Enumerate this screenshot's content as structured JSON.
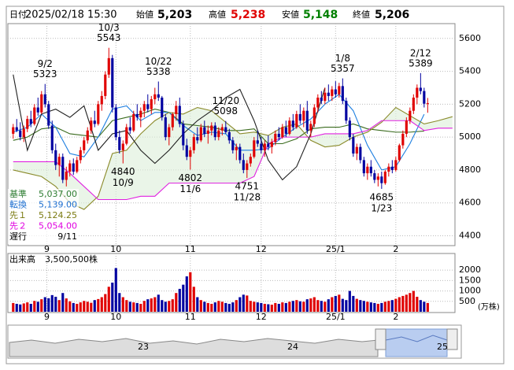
{
  "header": [
    {
      "label": "日付",
      "value": "2025/02/18 15:30"
    },
    {
      "label": "始値",
      "value": "5,203"
    },
    {
      "label": "高値",
      "value": "5,238",
      "color": "#e00000"
    },
    {
      "label": "安値",
      "value": "5,148",
      "color": "#008000"
    },
    {
      "label": "終値",
      "value": "5,206"
    }
  ],
  "chart_data": {
    "type": "candlestick",
    "up_color": "#e00000",
    "down_color": "#0000a0",
    "xlim": [
      -1.5,
      124.7
    ],
    "xticks": [
      {
        "value": 9.5,
        "label": "9"
      },
      {
        "value": 29,
        "label": "10"
      },
      {
        "value": 50,
        "label": "11"
      },
      {
        "value": 70,
        "label": "12"
      },
      {
        "value": 91,
        "label": "25/1"
      },
      {
        "value": 108,
        "label": "2"
      }
    ],
    "ylim": [
      4340,
      5690
    ],
    "yticks": [
      4400,
      4600,
      4800,
      5000,
      5200,
      5400,
      5600
    ],
    "grid": true,
    "candles": [
      [
        5020,
        5080,
        4990,
        5060
      ],
      [
        5060,
        5110,
        5030,
        5040
      ],
      [
        5040,
        5090,
        4980,
        5000
      ],
      [
        5000,
        5070,
        4970,
        5050
      ],
      [
        5050,
        5130,
        5030,
        5110
      ],
      [
        5110,
        5160,
        5060,
        5080
      ],
      [
        5080,
        5200,
        5070,
        5180
      ],
      [
        5180,
        5240,
        5130,
        5150
      ],
      [
        5150,
        5280,
        5140,
        5260
      ],
      [
        5260,
        5323,
        5180,
        5200
      ],
      [
        5200,
        5220,
        5050,
        5070
      ],
      [
        5070,
        5100,
        4900,
        4920
      ],
      [
        4920,
        4960,
        4800,
        4830
      ],
      [
        4830,
        4900,
        4760,
        4880
      ],
      [
        4880,
        4900,
        4720,
        4740
      ],
      [
        4740,
        4820,
        4700,
        4790
      ],
      [
        4790,
        4860,
        4760,
        4840
      ],
      [
        4840,
        4870,
        4770,
        4790
      ],
      [
        4790,
        4880,
        4780,
        4860
      ],
      [
        4860,
        4940,
        4840,
        4920
      ],
      [
        4920,
        5000,
        4900,
        4980
      ],
      [
        4980,
        5060,
        4960,
        5040
      ],
      [
        5040,
        5120,
        5020,
        5100
      ],
      [
        5100,
        5160,
        5060,
        5080
      ],
      [
        5080,
        5220,
        5070,
        5200
      ],
      [
        5200,
        5280,
        5160,
        5250
      ],
      [
        5250,
        5400,
        5230,
        5380
      ],
      [
        5380,
        5543,
        5360,
        5480
      ],
      [
        5480,
        5500,
        5150,
        5180
      ],
      [
        5180,
        5200,
        4980,
        5000
      ],
      [
        5000,
        5040,
        4900,
        4920
      ],
      [
        4920,
        4980,
        4840,
        4960
      ],
      [
        4960,
        5080,
        4950,
        5060
      ],
      [
        5060,
        5120,
        5020,
        5040
      ],
      [
        5040,
        5160,
        5030,
        5140
      ],
      [
        5140,
        5200,
        5100,
        5120
      ],
      [
        5120,
        5180,
        5060,
        5160
      ],
      [
        5160,
        5220,
        5120,
        5200
      ],
      [
        5200,
        5260,
        5150,
        5170
      ],
      [
        5170,
        5250,
        5140,
        5230
      ],
      [
        5230,
        5300,
        5200,
        5260
      ],
      [
        5260,
        5338,
        5220,
        5240
      ],
      [
        5240,
        5250,
        5100,
        5120
      ],
      [
        5120,
        5140,
        4980,
        5000
      ],
      [
        5000,
        5080,
        4950,
        5060
      ],
      [
        5060,
        5150,
        5040,
        5140
      ],
      [
        5140,
        5220,
        5100,
        5190
      ],
      [
        5190,
        5240,
        5060,
        5080
      ],
      [
        5080,
        5100,
        4920,
        4950
      ],
      [
        4950,
        4990,
        4860,
        4880
      ],
      [
        4880,
        4940,
        4802,
        4920
      ],
      [
        4920,
        5020,
        4900,
        5000
      ],
      [
        5000,
        5060,
        4960,
        4980
      ],
      [
        4980,
        5080,
        4970,
        5060
      ],
      [
        5060,
        5100,
        5000,
        5020
      ],
      [
        5020,
        5070,
        4960,
        5040
      ],
      [
        5040,
        5090,
        5010,
        5070
      ],
      [
        5070,
        5090,
        4980,
        5000
      ],
      [
        5000,
        5060,
        4980,
        5040
      ],
      [
        5040,
        5080,
        5010,
        5060
      ],
      [
        5060,
        5098,
        5020,
        5030
      ],
      [
        5030,
        5050,
        4960,
        4980
      ],
      [
        4980,
        5000,
        4900,
        4920
      ],
      [
        4920,
        4960,
        4860,
        4940
      ],
      [
        4940,
        4960,
        4840,
        4860
      ],
      [
        4860,
        4900,
        4780,
        4800
      ],
      [
        4800,
        4860,
        4751,
        4840
      ],
      [
        4840,
        4900,
        4820,
        4880
      ],
      [
        4880,
        5000,
        4870,
        4980
      ],
      [
        4980,
        5040,
        4940,
        4960
      ],
      [
        4960,
        5000,
        4900,
        4920
      ],
      [
        4920,
        4980,
        4880,
        4960
      ],
      [
        4960,
        5010,
        4920,
        4940
      ],
      [
        4940,
        4990,
        4900,
        4970
      ],
      [
        4970,
        5040,
        4950,
        5020
      ],
      [
        5020,
        5060,
        4980,
        5000
      ],
      [
        5000,
        5080,
        4990,
        5060
      ],
      [
        5060,
        5100,
        5000,
        5020
      ],
      [
        5020,
        5120,
        5010,
        5100
      ],
      [
        5100,
        5140,
        5040,
        5060
      ],
      [
        5060,
        5160,
        5050,
        5140
      ],
      [
        5140,
        5200,
        5080,
        5100
      ],
      [
        5100,
        5180,
        5060,
        5160
      ],
      [
        5160,
        5220,
        5020,
        5040
      ],
      [
        5040,
        5100,
        5000,
        5080
      ],
      [
        5080,
        5200,
        5060,
        5180
      ],
      [
        5180,
        5260,
        5150,
        5240
      ],
      [
        5240,
        5280,
        5200,
        5220
      ],
      [
        5220,
        5300,
        5200,
        5270
      ],
      [
        5270,
        5320,
        5220,
        5250
      ],
      [
        5250,
        5310,
        5220,
        5290
      ],
      [
        5290,
        5340,
        5240,
        5260
      ],
      [
        5260,
        5330,
        5240,
        5310
      ],
      [
        5310,
        5357,
        5200,
        5220
      ],
      [
        5220,
        5240,
        5080,
        5100
      ],
      [
        5100,
        5120,
        4980,
        5000
      ],
      [
        5000,
        5020,
        4880,
        4900
      ],
      [
        4900,
        4960,
        4860,
        4940
      ],
      [
        4940,
        4960,
        4840,
        4860
      ],
      [
        4860,
        4880,
        4760,
        4780
      ],
      [
        4780,
        4840,
        4740,
        4820
      ],
      [
        4820,
        4860,
        4760,
        4780
      ],
      [
        4780,
        4800,
        4720,
        4740
      ],
      [
        4740,
        4780,
        4700,
        4760
      ],
      [
        4760,
        4790,
        4685,
        4720
      ],
      [
        4720,
        4800,
        4710,
        4790
      ],
      [
        4790,
        4840,
        4760,
        4820
      ],
      [
        4820,
        4860,
        4780,
        4800
      ],
      [
        4800,
        4880,
        4790,
        4860
      ],
      [
        4860,
        4960,
        4850,
        4950
      ],
      [
        4950,
        5040,
        4930,
        5020
      ],
      [
        5020,
        5120,
        5000,
        5100
      ],
      [
        5100,
        5180,
        5080,
        5160
      ],
      [
        5160,
        5260,
        5140,
        5240
      ],
      [
        5240,
        5320,
        5200,
        5300
      ],
      [
        5300,
        5389,
        5260,
        5280
      ],
      [
        5280,
        5300,
        5180,
        5203
      ],
      [
        5203,
        5238,
        5148,
        5206
      ]
    ],
    "line_x": [
      0,
      4,
      8,
      12,
      16,
      20,
      24,
      28,
      32,
      36,
      40,
      44,
      48,
      52,
      56,
      60,
      64,
      68,
      72,
      76,
      80,
      84,
      88,
      92,
      96,
      100,
      104,
      108,
      112,
      116,
      120,
      124
    ],
    "lines": [
      {
        "name": "基準",
        "value": "5,037.00",
        "color": "#3a6b1e",
        "text_color": "#2e7d32",
        "values": [
          4980,
          5000,
          5050,
          5060,
          5020,
          5010,
          5000,
          5100,
          5120,
          5140,
          5170,
          5150,
          5080,
          5070,
          5060,
          5040,
          5040,
          5050,
          4960,
          4960,
          4990,
          5050,
          5060,
          5060,
          5080,
          5050,
          5040,
          5030,
          5030,
          5037,
          null,
          null
        ]
      },
      {
        "name": "転換",
        "value": "5,139.00",
        "color": "#1e7fe0",
        "text_color": "#1e6fd0",
        "values": [
          5030,
          5060,
          5140,
          5060,
          4900,
          4880,
          5000,
          5170,
          5190,
          5100,
          5150,
          5150,
          5070,
          5010,
          5030,
          5020,
          4920,
          4920,
          4930,
          5000,
          5060,
          5110,
          5200,
          5260,
          5160,
          4950,
          4800,
          4820,
          4960,
          5139,
          null,
          null
        ]
      },
      {
        "name": "先１",
        "value": "5,124.25",
        "color": "#8a8a2a",
        "text_color": "#7a7a10",
        "values": [
          4800,
          4780,
          4760,
          4700,
          4600,
          4560,
          4640,
          4900,
          4920,
          5020,
          5100,
          5150,
          5140,
          5180,
          5160,
          5090,
          5020,
          5030,
          5010,
          5060,
          5080,
          4980,
          4940,
          4950,
          5000,
          5030,
          5090,
          5180,
          5130,
          5080,
          5100,
          5124.25
        ]
      },
      {
        "name": "先２",
        "value": "5,054.00",
        "color": "#e020e0",
        "text_color": "#e000e0",
        "values": [
          4850,
          4850,
          4850,
          4850,
          4780,
          4700,
          4620,
          4620,
          4620,
          4640,
          4640,
          4720,
          4720,
          4720,
          4720,
          4720,
          4720,
          4760,
          4960,
          5000,
          5000,
          5000,
          5020,
          5020,
          5020,
          5040,
          5100,
          5100,
          5100,
          5040,
          5054,
          5054
        ]
      },
      {
        "name": "遅行",
        "value": "9/11",
        "color": "#202020",
        "text_color": "#000000",
        "values": [
          5380,
          4920,
          5140,
          5170,
          5120,
          5190,
          4920,
          5020,
          5040,
          4920,
          4840,
          4920,
          5020,
          5100,
          5160,
          5240,
          5290,
          5100,
          4860,
          4740,
          4820,
          5020,
          5300,
          null,
          null,
          null,
          null,
          null,
          null,
          null,
          null,
          null
        ]
      }
    ],
    "annotations": [
      {
        "date": "9/2",
        "value": 5323,
        "x": 9,
        "side": "high"
      },
      {
        "date": "10/3",
        "value": 5543,
        "x": 27,
        "side": "high"
      },
      {
        "date": "10/22",
        "value": 5338,
        "x": 41,
        "side": "high"
      },
      {
        "date": "11/20",
        "value": 5098,
        "x": 60,
        "side": "high"
      },
      {
        "date": "1/8",
        "value": 5357,
        "x": 93,
        "side": "high"
      },
      {
        "date": "2/12",
        "value": 5389,
        "x": 115,
        "side": "high"
      },
      {
        "date": "10/9",
        "value": 4840,
        "x": 31,
        "side": "low"
      },
      {
        "date": "11/6",
        "value": 4802,
        "x": 50,
        "side": "low"
      },
      {
        "date": "11/28",
        "value": 4751,
        "x": 66,
        "side": "low"
      },
      {
        "date": "1/23",
        "value": 4685,
        "x": 104,
        "side": "low"
      }
    ],
    "volume": {
      "title": "出来高",
      "total": "3,500,500株",
      "unit": "(万株)",
      "ylim": [
        0,
        2800
      ],
      "yticks": [
        500,
        1000,
        1500,
        2000
      ],
      "values": [
        420,
        380,
        350,
        400,
        450,
        380,
        520,
        480,
        600,
        700,
        650,
        800,
        720,
        560,
        900,
        640,
        500,
        420,
        380,
        450,
        520,
        480,
        430,
        560,
        610,
        700,
        850,
        1200,
        1400,
        2100,
        900,
        700,
        560,
        480,
        450,
        420,
        380,
        520,
        600,
        640,
        700,
        820,
        560,
        480,
        520,
        600,
        900,
        1100,
        1300,
        1700,
        1900,
        1200,
        700,
        560,
        480,
        420,
        380,
        450,
        520,
        480,
        420,
        380,
        450,
        560,
        700,
        820,
        780,
        520,
        480,
        450,
        420,
        380,
        360,
        340,
        420,
        380,
        450,
        420,
        480,
        520,
        560,
        500,
        480,
        600,
        640,
        700,
        560,
        520,
        480,
        600,
        700,
        760,
        820,
        620,
        560,
        1000,
        760,
        620,
        560,
        520,
        480,
        450,
        420,
        380,
        420,
        480,
        520,
        560,
        620,
        700,
        760,
        820,
        900,
        1000,
        720,
        560,
        480,
        420
      ]
    }
  },
  "navigator": {
    "labels": [
      "23",
      "24",
      "25"
    ]
  }
}
